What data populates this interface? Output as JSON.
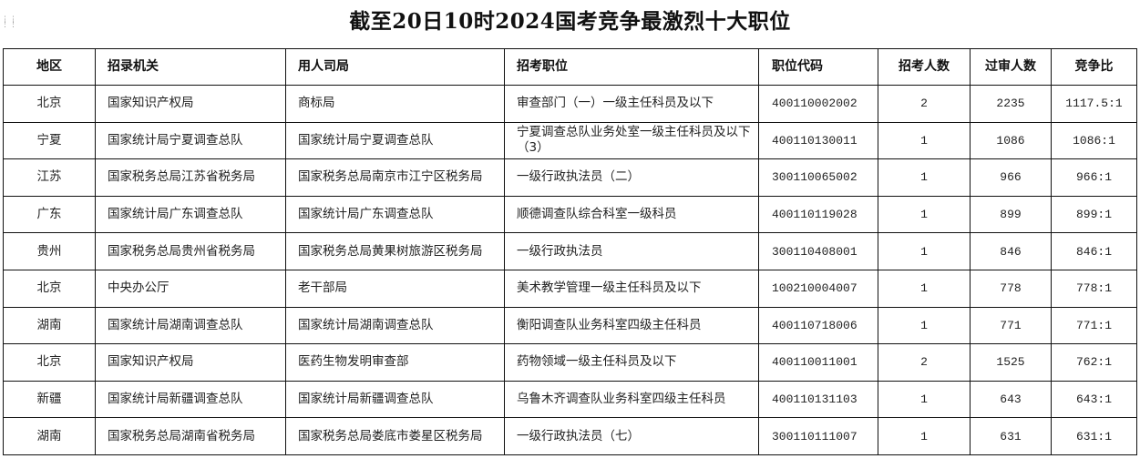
{
  "title": "截至20日10时2024国考竞争最激烈十大职位",
  "columns": [
    "地区",
    "招录机关",
    "用人司局",
    "招考职位",
    "职位代码",
    "招考人数",
    "过审人数",
    "竞争比"
  ],
  "rows": [
    [
      "北京",
      "国家知识产权局",
      "商标局",
      "审查部门（一）一级主任科员及以下",
      "400110002002",
      "2",
      "2235",
      "1117.5:1"
    ],
    [
      "宁夏",
      "国家统计局宁夏调查总队",
      "国家统计局宁夏调查总队",
      "宁夏调查总队业务处室一级主任科员及以下（3）",
      "400110130011",
      "1",
      "1086",
      "1086:1"
    ],
    [
      "江苏",
      "国家税务总局江苏省税务局",
      "国家税务总局南京市江宁区税务局",
      "一级行政执法员（二）",
      "300110065002",
      "1",
      "966",
      "966:1"
    ],
    [
      "广东",
      "国家统计局广东调查总队",
      "国家统计局广东调查总队",
      "顺德调查队综合科室一级科员",
      "400110119028",
      "1",
      "899",
      "899:1"
    ],
    [
      "贵州",
      "国家税务总局贵州省税务局",
      "国家税务总局黄果树旅游区税务局",
      "一级行政执法员",
      "300110408001",
      "1",
      "846",
      "846:1"
    ],
    [
      "北京",
      "中央办公厅",
      "老干部局",
      "美术教学管理一级主任科员及以下",
      "100210004007",
      "1",
      "778",
      "778:1"
    ],
    [
      "湖南",
      "国家统计局湖南调查总队",
      "国家统计局湖南调查总队",
      "衡阳调查队业务科室四级主任科员",
      "400110718006",
      "1",
      "771",
      "771:1"
    ],
    [
      "北京",
      "国家知识产权局",
      "医药生物发明审查部",
      "药物领域一级主任科员及以下",
      "400110011001",
      "2",
      "1525",
      "762:1"
    ],
    [
      "新疆",
      "国家统计局新疆调查总队",
      "国家统计局新疆调查总队",
      "乌鲁木齐调查队业务科室四级主任科员",
      "400110131103",
      "1",
      "643",
      "643:1"
    ],
    [
      "湖南",
      "国家税务总局湖南省税务局",
      "国家税务总局娄底市娄星区税务局",
      "一级行政执法员（七）",
      "300110111007",
      "1",
      "631",
      "631:1"
    ]
  ]
}
